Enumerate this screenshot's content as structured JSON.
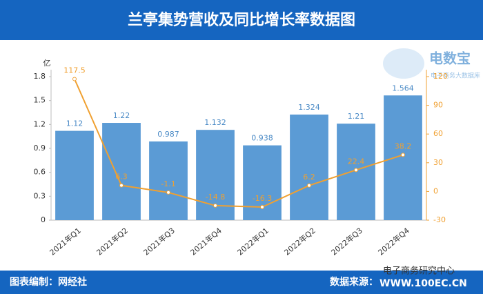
{
  "chart_data": {
    "type": "bar_line",
    "title": "兰亭集势营收及同比增长率数据图",
    "y_label": "亿",
    "categories": [
      "2021年Q1",
      "2021年Q2",
      "2021年Q3",
      "2021年Q4",
      "2022年Q1",
      "2022年Q2",
      "2022年Q3",
      "2022年Q4"
    ],
    "series": [
      {
        "type": "bar",
        "color": "#5b9bd5",
        "values": [
          1.12,
          1.22,
          0.987,
          1.132,
          0.938,
          1.324,
          1.21,
          1.564
        ]
      },
      {
        "type": "line",
        "axis": "y2",
        "color": "#f0a030",
        "values": [
          117.5,
          6.3,
          -1.1,
          -14.8,
          -16.3,
          6.2,
          22.4,
          38.2
        ]
      }
    ],
    "ylim": [
      0,
      1.8
    ],
    "yticks": [
      0,
      0.3,
      0.6,
      0.9,
      1.2,
      1.5,
      1.8
    ],
    "y2lim": [
      -30,
      120
    ],
    "y2ticks": [
      -30,
      0,
      30,
      60,
      90,
      120
    ]
  },
  "footer": {
    "compiler": "图表编制：网经社",
    "source": "数据来源："
  },
  "watermark": [
    "电子商务研究中心",
    "WWW.100EC.CN"
  ],
  "logo": {
    "name": "电数宝",
    "tagline": "电子商务大数据库"
  }
}
